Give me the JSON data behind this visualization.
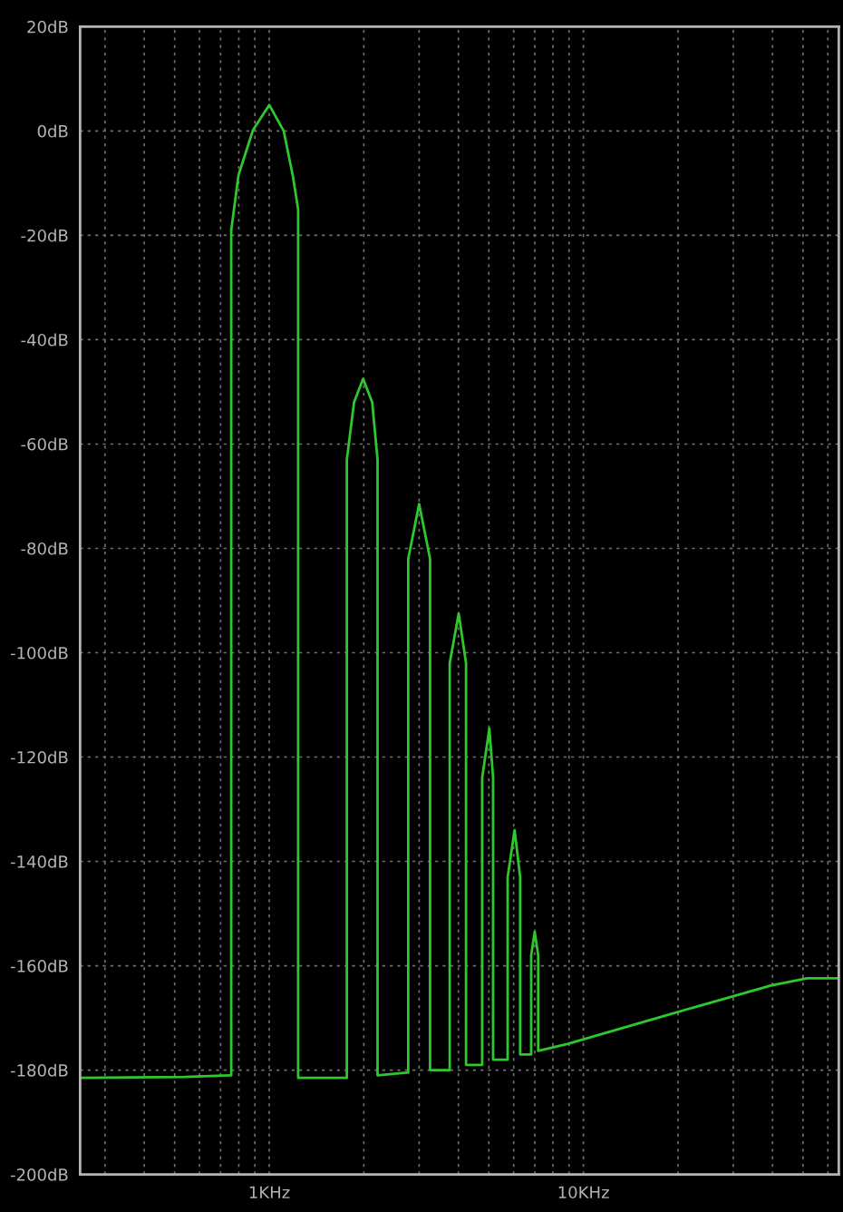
{
  "chart_data": {
    "type": "line",
    "log": "x",
    "grid": true,
    "marker": "none",
    "line_style": "solid",
    "xlim": [
      0.25,
      65
    ],
    "ylim": [
      -200,
      20
    ],
    "xticks": [
      {
        "value": 0.3,
        "label": null
      },
      {
        "value": 0.4,
        "label": null
      },
      {
        "value": 0.5,
        "label": null
      },
      {
        "value": 0.6,
        "label": null
      },
      {
        "value": 0.7,
        "label": null
      },
      {
        "value": 0.8,
        "label": null
      },
      {
        "value": 0.9,
        "label": null
      },
      {
        "value": 1,
        "label": "1KHz"
      },
      {
        "value": 2,
        "label": null
      },
      {
        "value": 3,
        "label": null
      },
      {
        "value": 4,
        "label": null
      },
      {
        "value": 5,
        "label": null
      },
      {
        "value": 6,
        "label": null
      },
      {
        "value": 7,
        "label": null
      },
      {
        "value": 8,
        "label": null
      },
      {
        "value": 9,
        "label": null
      },
      {
        "value": 10,
        "label": "10KHz"
      },
      {
        "value": 20,
        "label": null
      },
      {
        "value": 30,
        "label": null
      },
      {
        "value": 40,
        "label": null
      },
      {
        "value": 50,
        "label": null
      },
      {
        "value": 60,
        "label": null
      }
    ],
    "yticks": [
      {
        "value": 20,
        "label": "20dB"
      },
      {
        "value": 0,
        "label": "0dB"
      },
      {
        "value": -20,
        "label": "-20dB"
      },
      {
        "value": -40,
        "label": "-40dB"
      },
      {
        "value": -60,
        "label": "-60dB"
      },
      {
        "value": -80,
        "label": "-80dB"
      },
      {
        "value": -100,
        "label": "-100dB"
      },
      {
        "value": -120,
        "label": "-120dB"
      },
      {
        "value": -140,
        "label": "-140dB"
      },
      {
        "value": -160,
        "label": "-160dB"
      },
      {
        "value": -180,
        "label": "-180dB"
      },
      {
        "value": -200,
        "label": "-200dB"
      }
    ],
    "series": [
      {
        "color": "#2ec82e",
        "x": [
          0.25,
          0.537,
          0.747,
          0.757,
          0.757,
          0.798,
          0.888,
          1,
          1.112,
          1.188,
          1.236,
          1.236,
          1.236,
          1.766,
          1.766,
          1.862,
          1.99,
          2.127,
          2.212,
          2.212,
          2.733,
          2.77,
          2.77,
          3,
          3.25,
          3.25,
          3.754,
          3.754,
          4.01,
          4.231,
          4.231,
          4.762,
          4.762,
          5.02,
          5.16,
          5.16,
          5.74,
          5.74,
          6.04,
          6.29,
          6.29,
          6.82,
          6.82,
          7,
          7.18,
          7.18,
          8.87,
          19.6,
          39.5,
          51.5,
          65
        ],
        "values": [
          -181.5,
          -181.3,
          -181,
          -181,
          -19,
          -8.5,
          0.2,
          5,
          0,
          -8.5,
          -15,
          -58,
          -181.5,
          -181.5,
          -63,
          -52,
          -47.5,
          -52,
          -63,
          -181,
          -180.5,
          -180.5,
          -82,
          -71.5,
          -82,
          -180,
          -180,
          -102,
          -92.5,
          -102,
          -179,
          -179,
          -124,
          -114.5,
          -124,
          -178,
          -178,
          -143,
          -134,
          -143,
          -177,
          -177,
          -158,
          -153.5,
          -158,
          -176.3,
          -175,
          -169,
          -163.8,
          -162.4,
          -162.4
        ]
      }
    ]
  }
}
